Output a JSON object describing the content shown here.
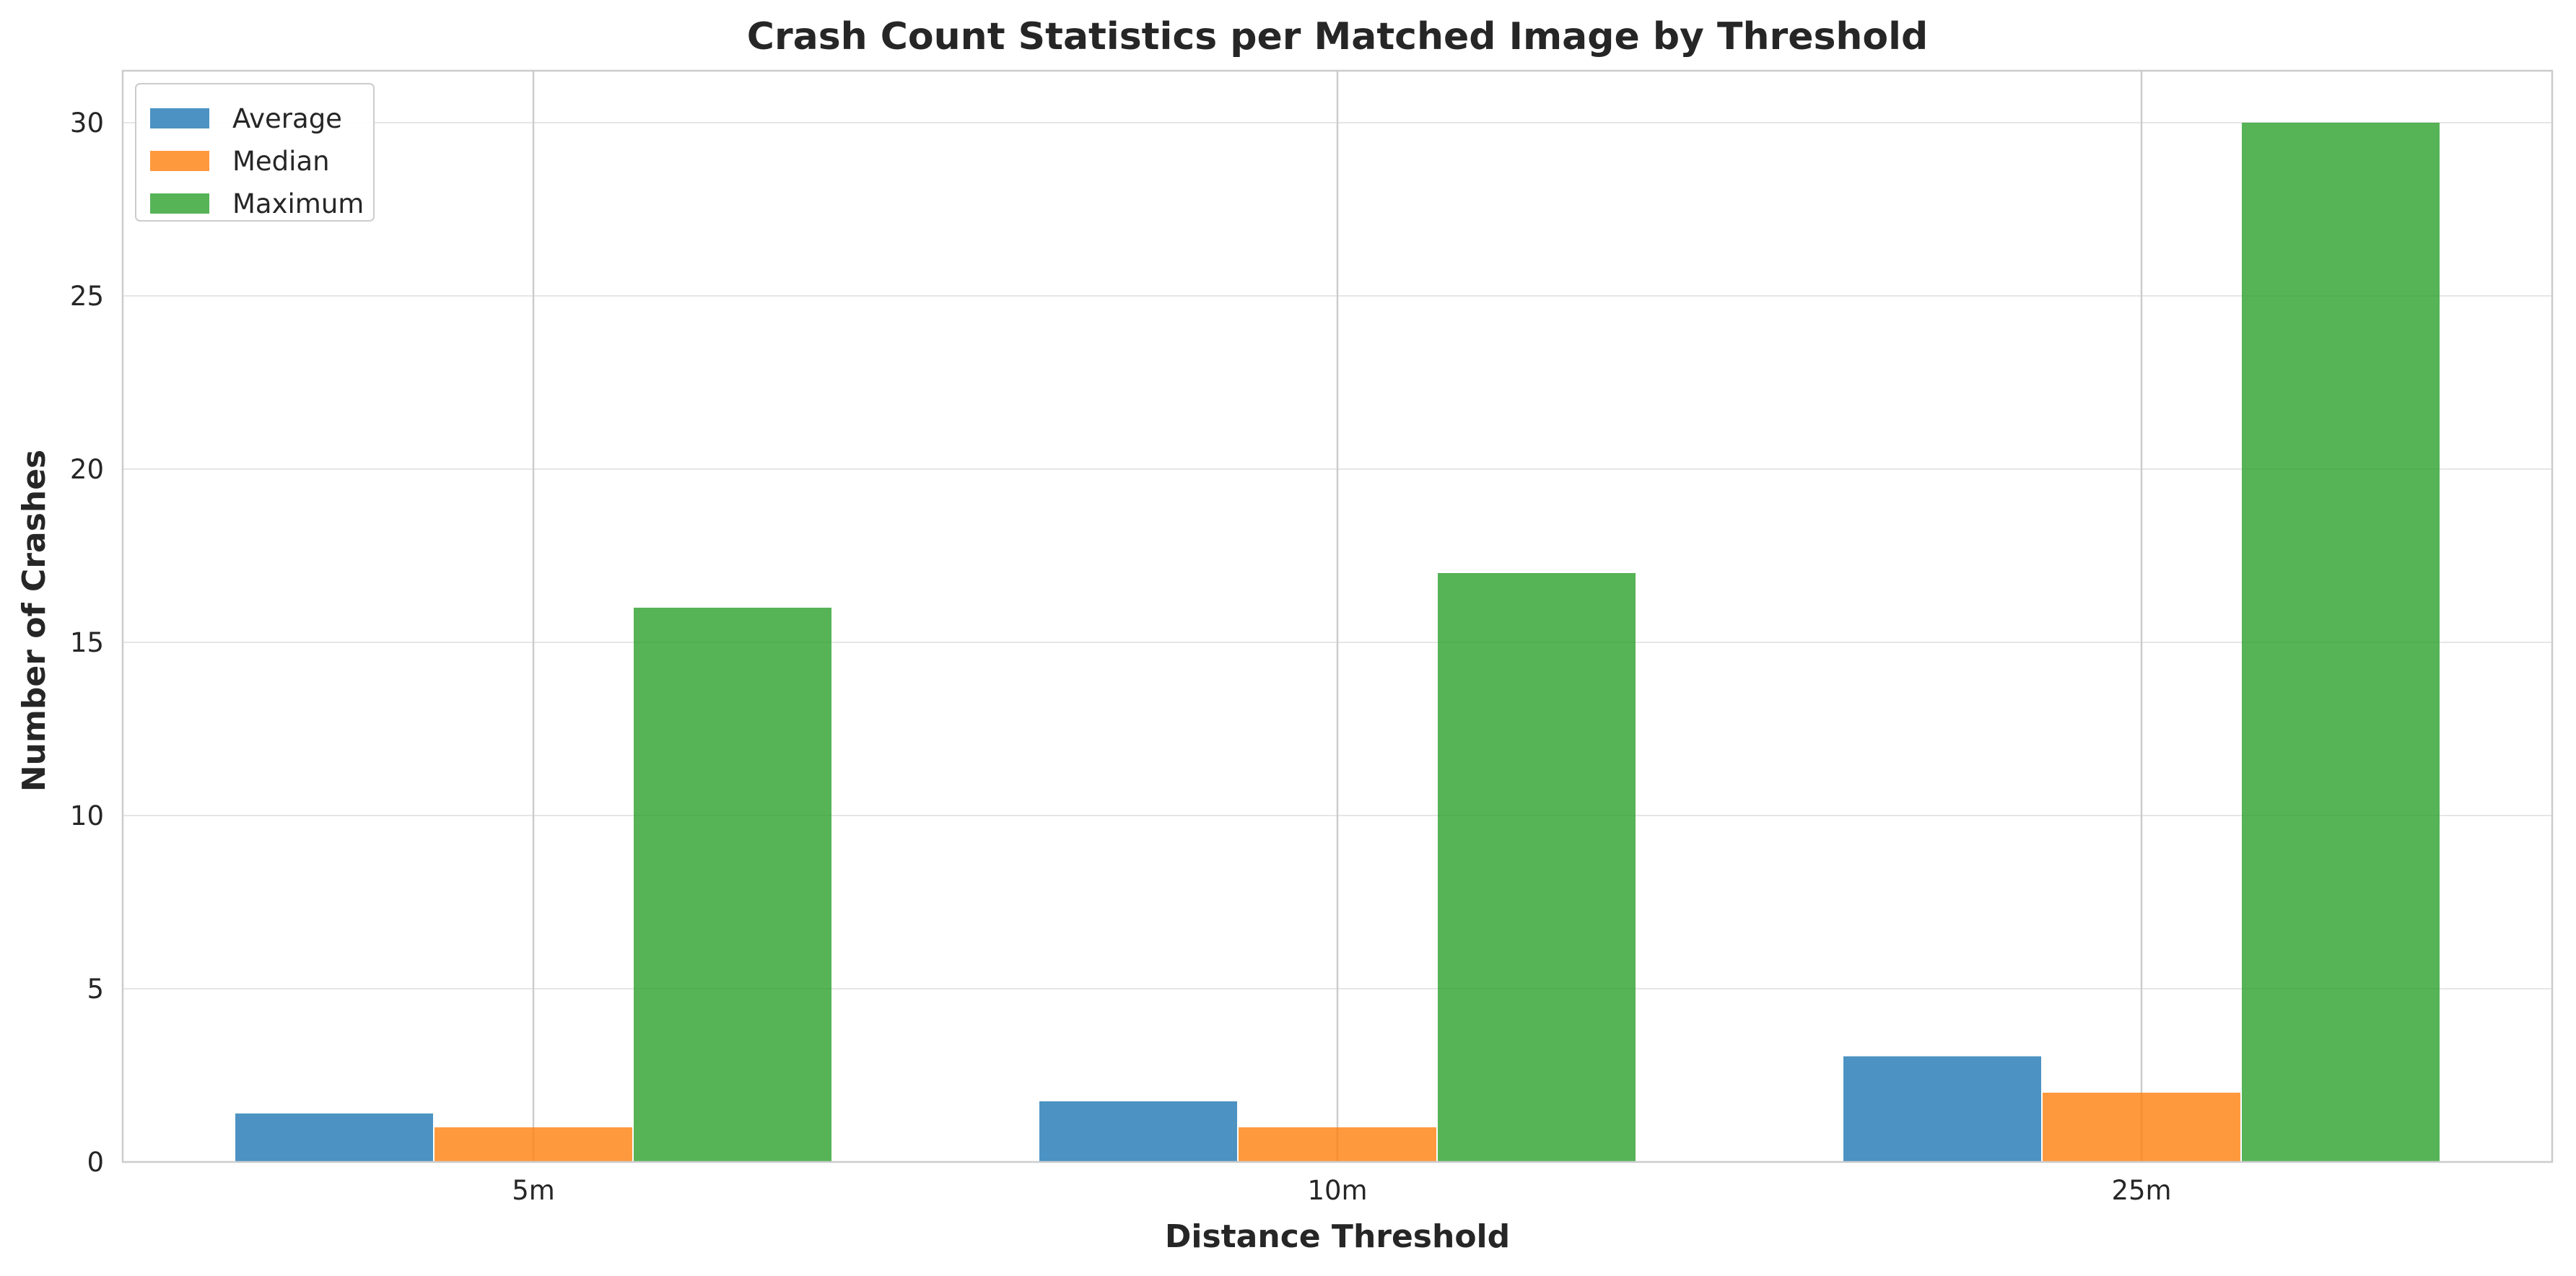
{
  "chart_data": {
    "type": "bar",
    "title": "Crash Count Statistics per Matched Image by Threshold",
    "xlabel": "Distance Threshold",
    "ylabel": "Number of Crashes",
    "categories": [
      "5m",
      "10m",
      "25m"
    ],
    "series": [
      {
        "name": "Average",
        "color": "#1f77b4",
        "values": [
          1.4,
          1.75,
          3.05
        ]
      },
      {
        "name": "Median",
        "color": "#ff7f0e",
        "values": [
          1,
          1,
          2
        ]
      },
      {
        "name": "Maximum",
        "color": "#2ca02c",
        "values": [
          16,
          17,
          30
        ]
      }
    ],
    "ylim": [
      0,
      31.5
    ],
    "yticks": [
      0,
      5,
      10,
      15,
      20,
      25,
      30
    ],
    "grid": true,
    "legend_position": "top-left"
  }
}
